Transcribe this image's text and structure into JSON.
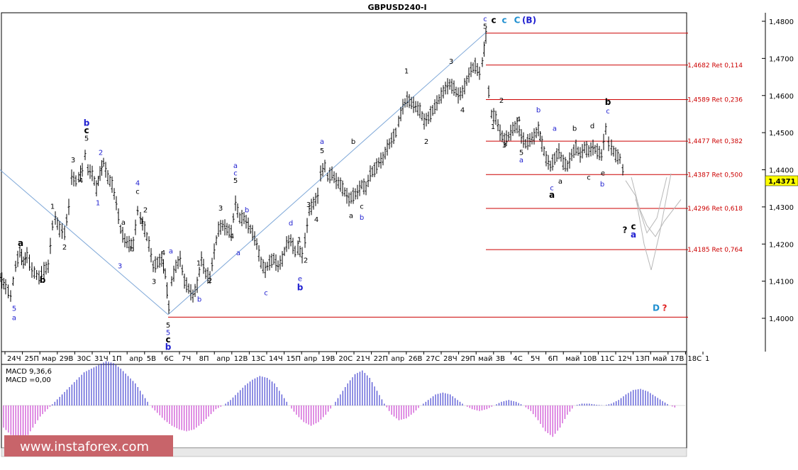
{
  "chart_data": {
    "type": "line",
    "title": "GBPUSD240-I",
    "ylim": [
      1.391,
      1.482
    ],
    "y_ticks": [
      "1,4800",
      "1,4700",
      "1,4600",
      "1,4500",
      "1,4400",
      "1,4300",
      "1,4200",
      "1,4100",
      "1,4000"
    ],
    "y_tick_values": [
      1.48,
      1.47,
      1.46,
      1.45,
      1.44,
      1.43,
      1.42,
      1.41,
      1.4
    ],
    "current_price": "1,4371",
    "x_labels": [
      "24Ч",
      "25П",
      "мар",
      "29В",
      "30С",
      "31Ч",
      "1П",
      "апр",
      "5В",
      "6С",
      "7Ч",
      "8П",
      "апр",
      "12В",
      "13С",
      "14Ч",
      "15П",
      "апр",
      "19В",
      "20С",
      "21Ч",
      "22П",
      "апр",
      "26В",
      "27С",
      "28Ч",
      "29П",
      "май",
      "3В",
      "4С",
      "5Ч",
      "6П",
      "май",
      "10В",
      "11С",
      "12Ч",
      "13П",
      "май",
      "17В",
      "18С",
      "1"
    ],
    "price_path": [
      [
        0,
        1.411
      ],
      [
        8,
        1.4085
      ],
      [
        15,
        1.406
      ],
      [
        22,
        1.414
      ],
      [
        28,
        1.418
      ],
      [
        33,
        1.415
      ],
      [
        38,
        1.417
      ],
      [
        45,
        1.413
      ],
      [
        55,
        1.411
      ],
      [
        62,
        1.413
      ],
      [
        68,
        1.414
      ],
      [
        74,
        1.425
      ],
      [
        78,
        1.427
      ],
      [
        84,
        1.424
      ],
      [
        91,
        1.423
      ],
      [
        97,
        1.43
      ],
      [
        101,
        1.438
      ],
      [
        107,
        1.437
      ],
      [
        111,
        1.438
      ],
      [
        116,
        1.44
      ],
      [
        120,
        1.444
      ],
      [
        124,
        1.44
      ],
      [
        130,
        1.439
      ],
      [
        136,
        1.435
      ],
      [
        141,
        1.439
      ],
      [
        146,
        1.442
      ],
      [
        152,
        1.438
      ],
      [
        158,
        1.436
      ],
      [
        164,
        1.431
      ],
      [
        170,
        1.424
      ],
      [
        176,
        1.421
      ],
      [
        182,
        1.42
      ],
      [
        188,
        1.42
      ],
      [
        194,
        1.429
      ],
      [
        198,
        1.427
      ],
      [
        204,
        1.424
      ],
      [
        210,
        1.42
      ],
      [
        216,
        1.414
      ],
      [
        222,
        1.415
      ],
      [
        228,
        1.416
      ],
      [
        233,
        1.412
      ],
      [
        238,
        1.403
      ],
      [
        242,
        1.41
      ],
      [
        248,
        1.414
      ],
      [
        254,
        1.416
      ],
      [
        260,
        1.41
      ],
      [
        266,
        1.408
      ],
      [
        272,
        1.406
      ],
      [
        278,
        1.409
      ],
      [
        284,
        1.416
      ],
      [
        290,
        1.412
      ],
      [
        296,
        1.411
      ],
      [
        302,
        1.418
      ],
      [
        308,
        1.424
      ],
      [
        314,
        1.425
      ],
      [
        320,
        1.424
      ],
      [
        326,
        1.423
      ],
      [
        332,
        1.431
      ],
      [
        338,
        1.427
      ],
      [
        344,
        1.427
      ],
      [
        350,
        1.425
      ],
      [
        356,
        1.423
      ],
      [
        362,
        1.42
      ],
      [
        368,
        1.415
      ],
      [
        374,
        1.413
      ],
      [
        380,
        1.415
      ],
      [
        386,
        1.416
      ],
      [
        392,
        1.414
      ],
      [
        398,
        1.416
      ],
      [
        404,
        1.42
      ],
      [
        410,
        1.421
      ],
      [
        416,
        1.418
      ],
      [
        420,
        1.419
      ],
      [
        426,
        1.417
      ],
      [
        430,
        1.421
      ],
      [
        436,
        1.429
      ],
      [
        442,
        1.431
      ],
      [
        448,
        1.433
      ],
      [
        452,
        1.439
      ],
      [
        458,
        1.441
      ],
      [
        462,
        1.438
      ],
      [
        468,
        1.439
      ],
      [
        474,
        1.437
      ],
      [
        480,
        1.436
      ],
      [
        486,
        1.434
      ],
      [
        492,
        1.432
      ],
      [
        498,
        1.433
      ],
      [
        504,
        1.434
      ],
      [
        510,
        1.436
      ],
      [
        516,
        1.435
      ],
      [
        522,
        1.439
      ],
      [
        528,
        1.44
      ],
      [
        534,
        1.442
      ],
      [
        540,
        1.443
      ],
      [
        546,
        1.446
      ],
      [
        552,
        1.448
      ],
      [
        558,
        1.45
      ],
      [
        562,
        1.453
      ],
      [
        568,
        1.457
      ],
      [
        574,
        1.459
      ],
      [
        580,
        1.458
      ],
      [
        586,
        1.457
      ],
      [
        592,
        1.456
      ],
      [
        598,
        1.453
      ],
      [
        604,
        1.454
      ],
      [
        610,
        1.456
      ],
      [
        616,
        1.458
      ],
      [
        622,
        1.46
      ],
      [
        628,
        1.462
      ],
      [
        634,
        1.463
      ],
      [
        640,
        1.462
      ],
      [
        646,
        1.46
      ],
      [
        652,
        1.461
      ],
      [
        658,
        1.464
      ],
      [
        664,
        1.467
      ],
      [
        670,
        1.468
      ],
      [
        676,
        1.466
      ],
      [
        680,
        1.469
      ],
      [
        685,
        1.476
      ],
      [
        689,
        1.461
      ],
      [
        693,
        1.455
      ],
      [
        699,
        1.454
      ],
      [
        705,
        1.45
      ],
      [
        711,
        1.448
      ],
      [
        717,
        1.449
      ],
      [
        723,
        1.451
      ],
      [
        729,
        1.452
      ],
      [
        735,
        1.449
      ],
      [
        741,
        1.447
      ],
      [
        747,
        1.448
      ],
      [
        753,
        1.449
      ],
      [
        759,
        1.451
      ],
      [
        764,
        1.447
      ],
      [
        770,
        1.443
      ],
      [
        776,
        1.441
      ],
      [
        782,
        1.443
      ],
      [
        788,
        1.445
      ],
      [
        794,
        1.442
      ],
      [
        800,
        1.441
      ],
      [
        806,
        1.444
      ],
      [
        812,
        1.446
      ],
      [
        818,
        1.444
      ],
      [
        824,
        1.446
      ],
      [
        830,
        1.445
      ],
      [
        836,
        1.446
      ],
      [
        842,
        1.445
      ],
      [
        848,
        1.444
      ],
      [
        854,
        1.451
      ],
      [
        858,
        1.447
      ],
      [
        862,
        1.446
      ],
      [
        868,
        1.444
      ],
      [
        874,
        1.443
      ],
      [
        878,
        1.44
      ],
      [
        882,
        1.437
      ]
    ],
    "projection_paths": [
      [
        [
          882,
          1.4371
        ],
        [
          896,
          1.433
        ],
        [
          908,
          1.42
        ],
        [
          918,
          1.413
        ],
        [
          930,
          1.423
        ],
        [
          946,
          1.439
        ]
      ],
      [
        [
          890,
          1.438
        ],
        [
          902,
          1.429
        ],
        [
          912,
          1.423
        ],
        [
          926,
          1.427
        ],
        [
          940,
          1.438
        ]
      ],
      [
        [
          896,
          1.432
        ],
        [
          912,
          1.425
        ],
        [
          924,
          1.422
        ],
        [
          936,
          1.426
        ],
        [
          960,
          1.432
        ]
      ]
    ],
    "channel_lines": [
      [
        [
          0,
          1.44
        ],
        [
          237,
          1.401
        ]
      ],
      [
        [
          237,
          1.401
        ],
        [
          685,
          1.477
        ]
      ]
    ],
    "fib_levels": [
      {
        "price": 1.4768,
        "label": "",
        "x_start": 685
      },
      {
        "price": 1.4682,
        "label": "1,4682 Ret 0,114",
        "x_start": 685
      },
      {
        "price": 1.4589,
        "label": "1,4589 Ret 0,236",
        "x_start": 685
      },
      {
        "price": 1.4477,
        "label": "1,4477 Ret 0,382",
        "x_start": 685
      },
      {
        "price": 1.4387,
        "label": "1,4387 Ret 0,500",
        "x_start": 685
      },
      {
        "price": 1.4296,
        "label": "1,4296 Ret 0,618",
        "x_start": 685
      },
      {
        "price": 1.4185,
        "label": "1,4185 Ret 0,764",
        "x_start": 685
      },
      {
        "price": 1.4003,
        "label": "",
        "x_start": 237
      }
    ],
    "wave_labels": [
      {
        "t": "5",
        "x": 20,
        "p": 1.402,
        "c": "#1f1fd0"
      },
      {
        "t": "a",
        "x": 20,
        "p": 1.3995,
        "c": "#1f1fd0"
      },
      {
        "t": "a",
        "x": 29,
        "p": 1.4195,
        "c": "#000",
        "b": true
      },
      {
        "t": "b",
        "x": 60,
        "p": 1.4095,
        "c": "#000",
        "b": true
      },
      {
        "t": "1",
        "x": 74,
        "p": 1.4295,
        "c": "#000"
      },
      {
        "t": "2",
        "x": 91,
        "p": 1.4185,
        "c": "#000"
      },
      {
        "t": "3",
        "x": 103,
        "p": 1.442,
        "c": "#000"
      },
      {
        "t": "4",
        "x": 114,
        "p": 1.4365,
        "c": "#000"
      },
      {
        "t": "b",
        "x": 122,
        "p": 1.4518,
        "c": "#1f1fd0",
        "b": true
      },
      {
        "t": "c",
        "x": 122,
        "p": 1.4498,
        "c": "#000",
        "b": true
      },
      {
        "t": "5",
        "x": 122,
        "p": 1.4478,
        "c": "#000"
      },
      {
        "t": "2",
        "x": 142,
        "p": 1.444,
        "c": "#1f1fd0"
      },
      {
        "t": "1",
        "x": 138,
        "p": 1.4305,
        "c": "#1f1fd0"
      },
      {
        "t": "3",
        "x": 169,
        "p": 1.4135,
        "c": "#1f1fd0"
      },
      {
        "t": "a",
        "x": 174,
        "p": 1.4252,
        "c": "#000"
      },
      {
        "t": "b",
        "x": 186,
        "p": 1.418,
        "c": "#000"
      },
      {
        "t": "4",
        "x": 194,
        "p": 1.4358,
        "c": "#1f1fd0"
      },
      {
        "t": "c",
        "x": 194,
        "p": 1.4335,
        "c": "#000"
      },
      {
        "t": "2",
        "x": 205,
        "p": 1.4285,
        "c": "#000"
      },
      {
        "t": "1",
        "x": 200,
        "p": 1.4255,
        "c": "#000"
      },
      {
        "t": "3",
        "x": 217,
        "p": 1.4093,
        "c": "#000"
      },
      {
        "t": "4",
        "x": 230,
        "p": 1.417,
        "c": "#000"
      },
      {
        "t": "a",
        "x": 241,
        "p": 1.4175,
        "c": "#1f1fd0"
      },
      {
        "t": "5",
        "x": 237,
        "p": 1.3975,
        "c": "#000"
      },
      {
        "t": "5",
        "x": 237,
        "p": 1.3955,
        "c": "#1f1fd0"
      },
      {
        "t": "c",
        "x": 237,
        "p": 1.3935,
        "c": "#000",
        "b": true
      },
      {
        "t": "b",
        "x": 237,
        "p": 1.3915,
        "c": "#1f1fd0",
        "b": true
      },
      {
        "t": "b",
        "x": 281,
        "p": 1.4045,
        "c": "#1f1fd0"
      },
      {
        "t": "1",
        "x": 280,
        "p": 1.4142,
        "c": "#000"
      },
      {
        "t": "2",
        "x": 296,
        "p": 1.4095,
        "c": "#000"
      },
      {
        "t": "3",
        "x": 311,
        "p": 1.429,
        "c": "#000"
      },
      {
        "t": "4",
        "x": 327,
        "p": 1.4215,
        "c": "#000"
      },
      {
        "t": "a",
        "x": 332,
        "p": 1.4405,
        "c": "#1f1fd0"
      },
      {
        "t": "c",
        "x": 332,
        "p": 1.4385,
        "c": "#1f1fd0"
      },
      {
        "t": "5",
        "x": 332,
        "p": 1.4365,
        "c": "#000"
      },
      {
        "t": "b",
        "x": 348,
        "p": 1.4285,
        "c": "#1f1fd0"
      },
      {
        "t": "a",
        "x": 336,
        "p": 1.417,
        "c": "#1f1fd0"
      },
      {
        "t": "c",
        "x": 375,
        "p": 1.4062,
        "c": "#1f1fd0"
      },
      {
        "t": "d",
        "x": 410,
        "p": 1.425,
        "c": "#1f1fd0"
      },
      {
        "t": "1",
        "x": 422,
        "p": 1.4205,
        "c": "#000"
      },
      {
        "t": "2",
        "x": 431,
        "p": 1.415,
        "c": "#000"
      },
      {
        "t": "e",
        "x": 423,
        "p": 1.41,
        "c": "#1f1fd0"
      },
      {
        "t": "b",
        "x": 423,
        "p": 1.4075,
        "c": "#1f1fd0",
        "b": true
      },
      {
        "t": "3",
        "x": 435,
        "p": 1.43,
        "c": "#000"
      },
      {
        "t": "4",
        "x": 446,
        "p": 1.426,
        "c": "#000"
      },
      {
        "t": "a",
        "x": 454,
        "p": 1.447,
        "c": "#1f1fd0"
      },
      {
        "t": "5",
        "x": 454,
        "p": 1.4445,
        "c": "#000"
      },
      {
        "t": "b",
        "x": 498,
        "p": 1.447,
        "c": "#000"
      },
      {
        "t": "c",
        "x": 510,
        "p": 1.4295,
        "c": "#000"
      },
      {
        "t": "a",
        "x": 495,
        "p": 1.427,
        "c": "#000"
      },
      {
        "t": "b",
        "x": 510,
        "p": 1.4265,
        "c": "#1f1fd0"
      },
      {
        "t": "1",
        "x": 573,
        "p": 1.466,
        "c": "#000"
      },
      {
        "t": "2",
        "x": 601,
        "p": 1.447,
        "c": "#000"
      },
      {
        "t": "3",
        "x": 636,
        "p": 1.4685,
        "c": "#000"
      },
      {
        "t": "4",
        "x": 652,
        "p": 1.4555,
        "c": "#000"
      },
      {
        "t": "c",
        "x": 684,
        "p": 1.48,
        "c": "#1f1fd0"
      },
      {
        "t": "5",
        "x": 684,
        "p": 1.478,
        "c": "#000"
      },
      {
        "t": "c",
        "x": 696,
        "p": 1.4795,
        "c": "#000",
        "b": true
      },
      {
        "t": "c",
        "x": 711,
        "p": 1.4795,
        "c": "#1f8fd0",
        "b": true
      },
      {
        "t": "C",
        "x": 729,
        "p": 1.4795,
        "c": "#1f8fd0",
        "b": true
      },
      {
        "t": "(B)",
        "x": 746,
        "p": 1.4795,
        "c": "#1f1fd0",
        "b": true
      },
      {
        "t": "2",
        "x": 707,
        "p": 1.458,
        "c": "#000"
      },
      {
        "t": "1",
        "x": 695,
        "p": 1.451,
        "c": "#000"
      },
      {
        "t": "4",
        "x": 731,
        "p": 1.453,
        "c": "#000"
      },
      {
        "t": "3",
        "x": 711,
        "p": 1.446,
        "c": "#000"
      },
      {
        "t": "5",
        "x": 735,
        "p": 1.444,
        "c": "#000"
      },
      {
        "t": "a",
        "x": 735,
        "p": 1.442,
        "c": "#1f1fd0"
      },
      {
        "t": "b",
        "x": 759,
        "p": 1.4555,
        "c": "#1f1fd0"
      },
      {
        "t": "a",
        "x": 782,
        "p": 1.4505,
        "c": "#1f1fd0"
      },
      {
        "t": "b",
        "x": 810,
        "p": 1.4505,
        "c": "#000"
      },
      {
        "t": "d",
        "x": 835,
        "p": 1.4512,
        "c": "#000"
      },
      {
        "t": "b",
        "x": 857,
        "p": 1.4575,
        "c": "#000",
        "b": true
      },
      {
        "t": "c",
        "x": 857,
        "p": 1.4552,
        "c": "#1f1fd0"
      },
      {
        "t": "a",
        "x": 790,
        "p": 1.4363,
        "c": "#000"
      },
      {
        "t": "c",
        "x": 778,
        "p": 1.4345,
        "c": "#1f1fd0"
      },
      {
        "t": "a",
        "x": 778,
        "p": 1.4325,
        "c": "#000",
        "b": true
      },
      {
        "t": "c",
        "x": 830,
        "p": 1.4373,
        "c": "#000"
      },
      {
        "t": "e",
        "x": 850,
        "p": 1.4385,
        "c": "#000"
      },
      {
        "t": "b",
        "x": 849,
        "p": 1.4355,
        "c": "#1f1fd0"
      },
      {
        "t": "?",
        "x": 881,
        "p": 1.423,
        "c": "#000",
        "b": true
      },
      {
        "t": "c",
        "x": 893,
        "p": 1.424,
        "c": "#000",
        "b": true
      },
      {
        "t": "a",
        "x": 893,
        "p": 1.4218,
        "c": "#1f1fd0",
        "b": true
      },
      {
        "t": "D",
        "x": 925,
        "p": 1.402,
        "c": "#1f8fd0",
        "b": true
      },
      {
        "t": "?",
        "x": 937,
        "p": 1.402,
        "c": "#e02020",
        "b": true
      }
    ]
  },
  "indicator": {
    "name": "MACD 9,36,6",
    "value_label": "MACD =0,00",
    "histogram": [
      -0.6,
      -0.8,
      -1.0,
      -0.9,
      -0.6,
      -0.3,
      -0.1,
      0.1,
      0.3,
      0.5,
      0.7,
      0.9,
      1.0,
      1.1,
      1.2,
      1.15,
      1.0,
      0.8,
      0.6,
      0.3,
      0.0,
      -0.2,
      -0.4,
      -0.55,
      -0.65,
      -0.7,
      -0.65,
      -0.5,
      -0.3,
      -0.1,
      0.0,
      0.15,
      0.35,
      0.55,
      0.7,
      0.8,
      0.75,
      0.6,
      0.3,
      0.0,
      -0.25,
      -0.45,
      -0.55,
      -0.45,
      -0.25,
      0.0,
      0.3,
      0.6,
      0.85,
      0.95,
      0.75,
      0.4,
      0.05,
      -0.25,
      -0.4,
      -0.35,
      -0.2,
      0.0,
      0.15,
      0.3,
      0.35,
      0.3,
      0.15,
      0.0,
      -0.1,
      -0.15,
      -0.1,
      0.0,
      0.1,
      0.15,
      0.1,
      0.0,
      -0.15,
      -0.4,
      -0.7,
      -0.85,
      -0.6,
      -0.25,
      0.0,
      0.05,
      0.05,
      0.02,
      0.0,
      0.05,
      0.15,
      0.3,
      0.42,
      0.45,
      0.38,
      0.25,
      0.12,
      0.0,
      -0.08
    ]
  },
  "watermark": "www.instaforex.com"
}
